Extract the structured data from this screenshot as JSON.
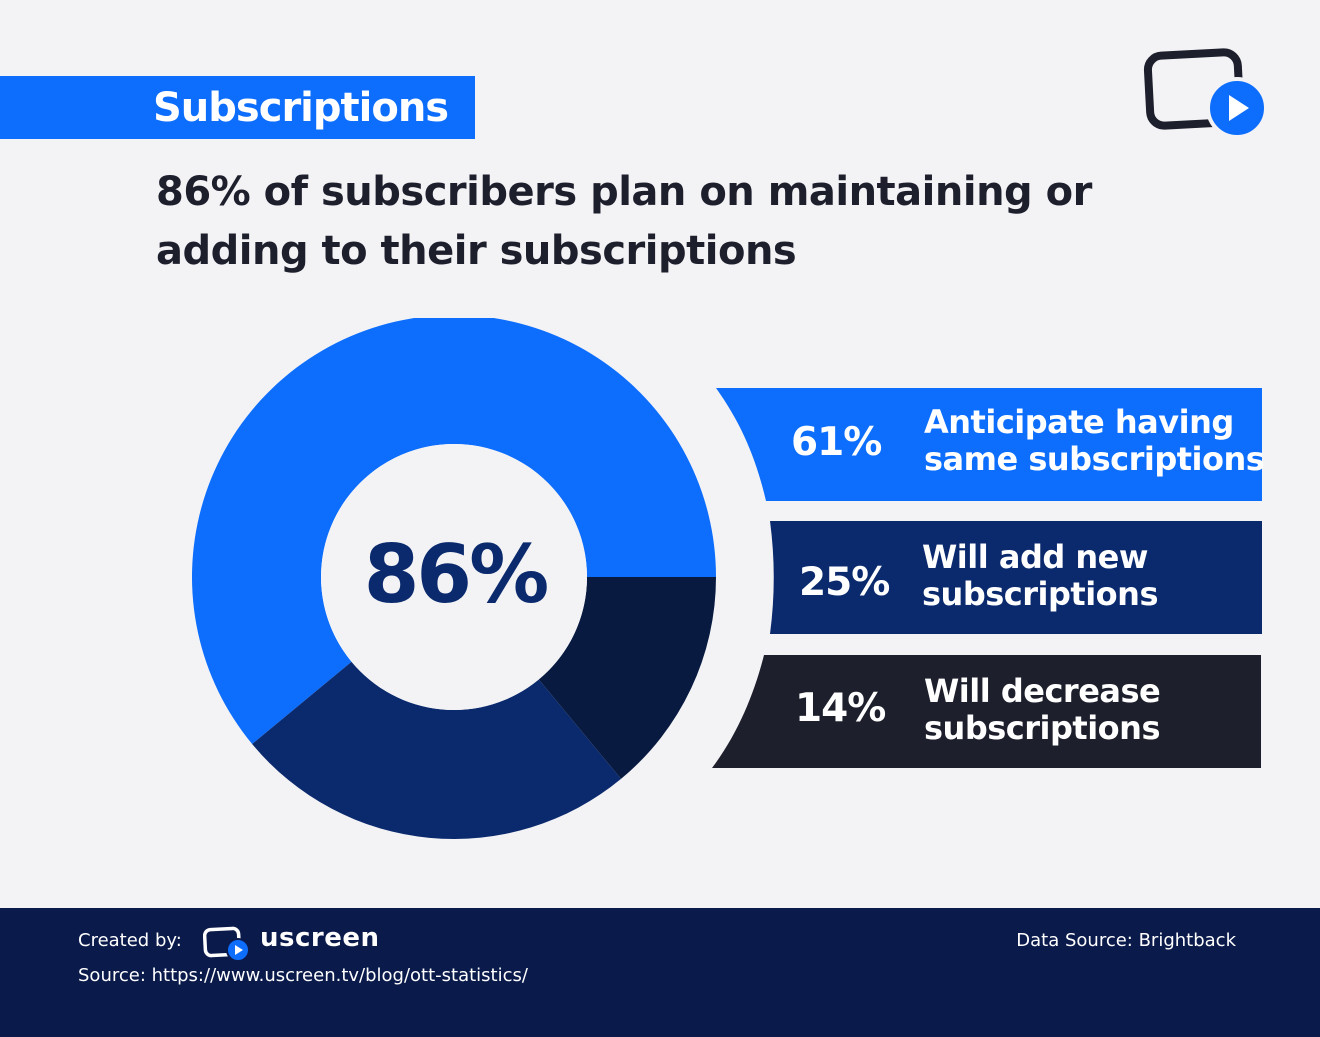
{
  "header": {
    "tag": "Subscriptions",
    "headline_line1": "86% of subscribers plan on maintaining or",
    "headline_line2": "adding to their subscriptions"
  },
  "icons": {
    "top_logo": "screen-play-icon"
  },
  "colors": {
    "background": "#f3f3f6",
    "accent": "#0d6efd",
    "navy": "#0b2a6e",
    "dark_navy": "#081a40",
    "charcoal": "#1d1f2c",
    "footer": "#0a1a4a"
  },
  "chart_data": {
    "type": "donut",
    "center_label": "86%",
    "categories": [
      "Anticipate having same subscriptions",
      "Will add new subscriptions",
      "Will decrease subscriptions"
    ],
    "values": [
      61,
      25,
      14
    ],
    "slice_colors": [
      "#0d6efd",
      "#0b2a6e",
      "#081a40"
    ],
    "legend": [
      {
        "pct": "61%",
        "line1": "Anticipate having",
        "line2": "same subscriptions",
        "color": "#0d6efd"
      },
      {
        "pct": "25%",
        "line1": "Will add new",
        "line2": "subscriptions",
        "color": "#0b2a6e"
      },
      {
        "pct": "14%",
        "line1": "Will decrease",
        "line2": "subscriptions",
        "color": "#1d1f2c"
      }
    ]
  },
  "footer": {
    "created_by": "Created by:",
    "brand": "uscreen",
    "source": "Source: https://www.uscreen.tv/blog/ott-statistics/",
    "data_source": "Data Source: Brightback"
  }
}
